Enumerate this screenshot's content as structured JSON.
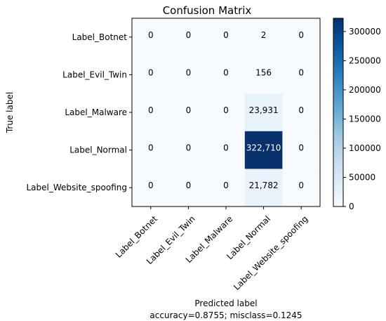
{
  "chart_data": {
    "type": "heatmap",
    "title": "Confusion Matrix",
    "ylabel": "True label",
    "xlabel": "Predicted label",
    "subtitle": "accuracy=0.8755; misclass=0.1245",
    "row_labels": [
      "Label_Botnet",
      "Label_Evil_Twin",
      "Label_Malware",
      "Label_Normal",
      "Label_Website_spoofing"
    ],
    "col_labels": [
      "Label_Botnet",
      "Label_Evil_Twin",
      "Label_Malware",
      "Label_Normal",
      "Label_Website_spoofing"
    ],
    "values": [
      [
        0,
        0,
        0,
        2,
        0
      ],
      [
        0,
        0,
        0,
        156,
        0
      ],
      [
        0,
        0,
        0,
        23931,
        0
      ],
      [
        0,
        0,
        0,
        322710,
        0
      ],
      [
        0,
        0,
        0,
        21782,
        0
      ]
    ],
    "cell_labels": [
      [
        "0",
        "0",
        "0",
        "2",
        "0"
      ],
      [
        "0",
        "0",
        "0",
        "156",
        "0"
      ],
      [
        "0",
        "0",
        "0",
        "23,931",
        "0"
      ],
      [
        "0",
        "0",
        "0",
        "322,710",
        "0"
      ],
      [
        "0",
        "0",
        "0",
        "21,782",
        "0"
      ]
    ],
    "colormap": "Blues",
    "colorbar": {
      "range": [
        0,
        322710
      ],
      "ticks": [
        0,
        50000,
        100000,
        150000,
        200000,
        250000,
        300000
      ],
      "tick_labels": [
        "0",
        "50000",
        "100000",
        "150000",
        "200000",
        "250000",
        "300000"
      ]
    },
    "grid": false
  }
}
